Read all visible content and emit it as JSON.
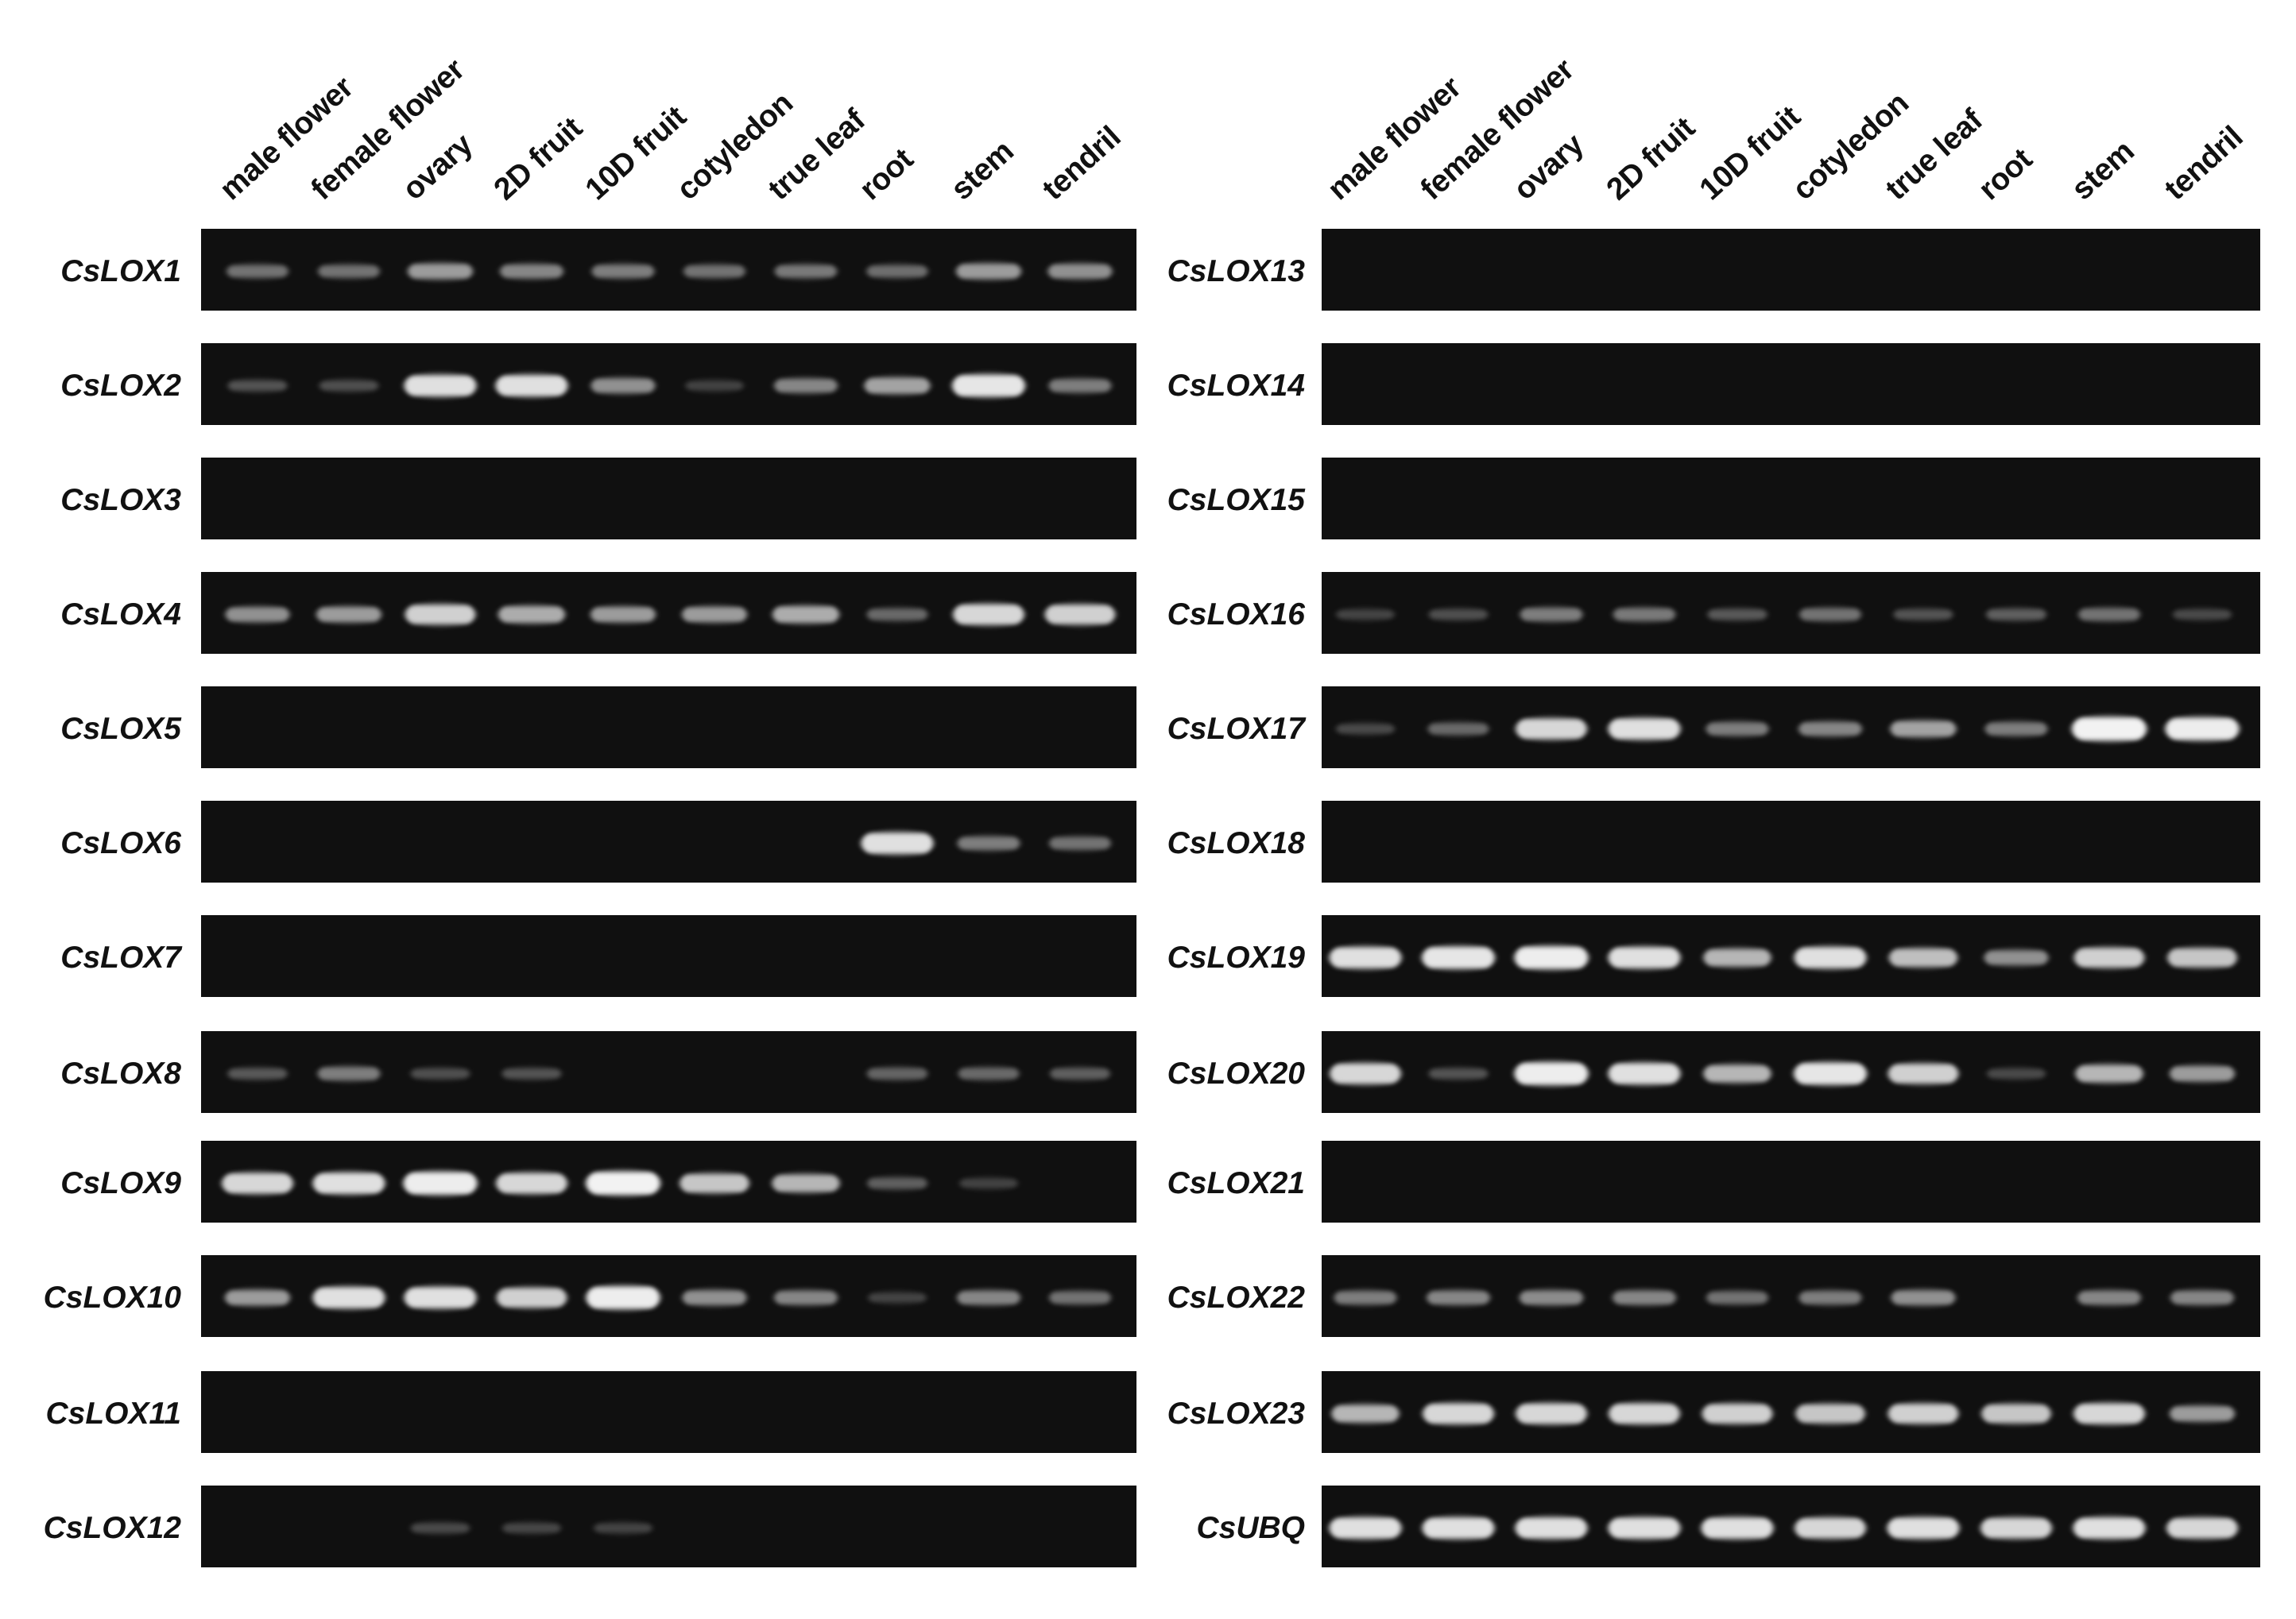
{
  "colors": {
    "background": "#ffffff",
    "gel": "#101010",
    "band": "#f2f2f2",
    "text": "#111111"
  },
  "panels": [
    {
      "id": "left",
      "column_labels": [
        "male flower",
        "female flower",
        "ovary",
        "2D fruit",
        "10D fruit",
        "cotyledon",
        "true leaf",
        "root",
        "stem",
        "tendril"
      ],
      "gels": [
        {
          "gene": "CsLOX1",
          "band_intensity": [
            0.25,
            0.25,
            0.45,
            0.35,
            0.3,
            0.25,
            0.28,
            0.22,
            0.45,
            0.4
          ]
        },
        {
          "gene": "CsLOX2",
          "band_intensity": [
            0.1,
            0.08,
            0.85,
            0.85,
            0.4,
            0.02,
            0.35,
            0.5,
            0.9,
            0.3
          ]
        },
        {
          "gene": "CsLOX3",
          "band_intensity": [
            0,
            0,
            0,
            0,
            0,
            0,
            0,
            0,
            0,
            0
          ]
        },
        {
          "gene": "CsLOX4",
          "band_intensity": [
            0.4,
            0.45,
            0.75,
            0.55,
            0.45,
            0.45,
            0.55,
            0.2,
            0.8,
            0.75
          ]
        },
        {
          "gene": "CsLOX5",
          "band_intensity": [
            0,
            0,
            0,
            0,
            0,
            0,
            0,
            0,
            0,
            0
          ]
        },
        {
          "gene": "CsLOX6",
          "band_intensity": [
            0,
            0,
            0,
            0,
            0,
            0,
            0,
            0.85,
            0.3,
            0.25
          ]
        },
        {
          "gene": "CsLOX7",
          "band_intensity": [
            0,
            0,
            0,
            0,
            0,
            0,
            0,
            0,
            0,
            0
          ]
        },
        {
          "gene": "CsLOX8",
          "band_intensity": [
            0.12,
            0.3,
            0.08,
            0.1,
            0,
            0,
            0,
            0.18,
            0.2,
            0.15
          ]
        },
        {
          "gene": "CsLOX9",
          "band_intensity": [
            0.8,
            0.85,
            0.95,
            0.8,
            0.98,
            0.7,
            0.6,
            0.15,
            0.02,
            0
          ]
        },
        {
          "gene": "CsLOX10",
          "band_intensity": [
            0.45,
            0.85,
            0.85,
            0.75,
            0.95,
            0.4,
            0.35,
            0.03,
            0.35,
            0.25
          ]
        },
        {
          "gene": "CsLOX11",
          "band_intensity": [
            0,
            0,
            0,
            0,
            0,
            0,
            0,
            0,
            0,
            0
          ]
        },
        {
          "gene": "CsLOX12",
          "band_intensity": [
            0,
            0,
            0.06,
            0.04,
            0.03,
            0,
            0,
            0,
            0,
            0
          ]
        }
      ]
    },
    {
      "id": "right",
      "column_labels": [
        "male flower",
        "female flower",
        "ovary",
        "2D fruit",
        "10D fruit",
        "cotyledon",
        "true leaf",
        "root",
        "stem",
        "tendril"
      ],
      "gels": [
        {
          "gene": "CsLOX13",
          "band_intensity": [
            0,
            0,
            0,
            0,
            0,
            0,
            0,
            0,
            0,
            0
          ]
        },
        {
          "gene": "CsLOX14",
          "band_intensity": [
            0,
            0,
            0,
            0,
            0,
            0,
            0,
            0,
            0,
            0
          ]
        },
        {
          "gene": "CsLOX15",
          "band_intensity": [
            0,
            0,
            0,
            0,
            0,
            0,
            0,
            0,
            0,
            0
          ]
        },
        {
          "gene": "CsLOX16",
          "band_intensity": [
            0.03,
            0.08,
            0.3,
            0.28,
            0.12,
            0.25,
            0.1,
            0.15,
            0.25,
            0.05
          ]
        },
        {
          "gene": "CsLOX17",
          "band_intensity": [
            0.05,
            0.2,
            0.8,
            0.85,
            0.3,
            0.35,
            0.5,
            0.3,
            1.0,
            0.95
          ]
        },
        {
          "gene": "CsLOX18",
          "band_intensity": [
            0,
            0,
            0,
            0,
            0,
            0,
            0,
            0,
            0,
            0
          ]
        },
        {
          "gene": "CsLOX19",
          "band_intensity": [
            0.85,
            0.9,
            0.95,
            0.85,
            0.6,
            0.85,
            0.65,
            0.4,
            0.75,
            0.7
          ]
        },
        {
          "gene": "CsLOX20",
          "band_intensity": [
            0.8,
            0.1,
            0.95,
            0.85,
            0.6,
            0.9,
            0.75,
            0.05,
            0.6,
            0.45
          ]
        },
        {
          "gene": "CsLOX21",
          "band_intensity": [
            0,
            0,
            0,
            0,
            0,
            0,
            0,
            0,
            0,
            0
          ]
        },
        {
          "gene": "CsLOX22",
          "band_intensity": [
            0.3,
            0.35,
            0.38,
            0.35,
            0.25,
            0.3,
            0.4,
            0,
            0.35,
            0.35
          ]
        },
        {
          "gene": "CsLOX23",
          "band_intensity": [
            0.6,
            0.8,
            0.8,
            0.8,
            0.75,
            0.7,
            0.75,
            0.7,
            0.8,
            0.45
          ]
        },
        {
          "gene": "CsUBQ",
          "band_intensity": [
            0.85,
            0.85,
            0.85,
            0.85,
            0.85,
            0.8,
            0.85,
            0.8,
            0.85,
            0.8
          ]
        }
      ]
    }
  ]
}
